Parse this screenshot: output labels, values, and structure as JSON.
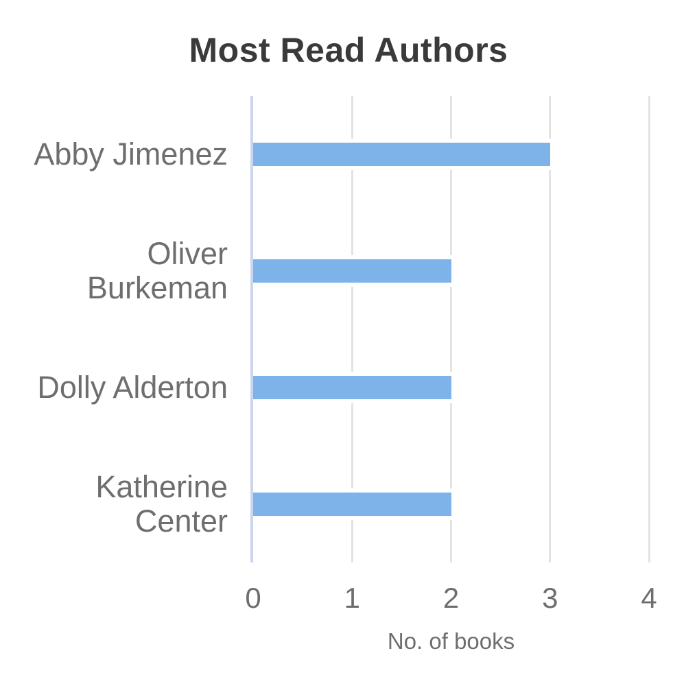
{
  "page": {
    "background": "#ffffff"
  },
  "chart_data": {
    "type": "bar",
    "orientation": "horizontal",
    "title": "Most Read Authors",
    "categories": [
      "Abby Jimenez",
      "Oliver Burkeman",
      "Dolly Alderton",
      "Katherine Center"
    ],
    "values": [
      3,
      2,
      2,
      2
    ],
    "xlabel": "No. of books",
    "ylabel": "",
    "xlim": [
      0,
      4
    ],
    "xticks": [
      "0",
      "1",
      "2",
      "3",
      "4"
    ],
    "grid": true,
    "legend": false,
    "colors": {
      "bar": "#7DB3E8",
      "grid": "#E3E3E3",
      "zero_axis": "#CBD6EE",
      "title_text": "#3A3A3A",
      "label_text": "#6E6E6E"
    }
  }
}
